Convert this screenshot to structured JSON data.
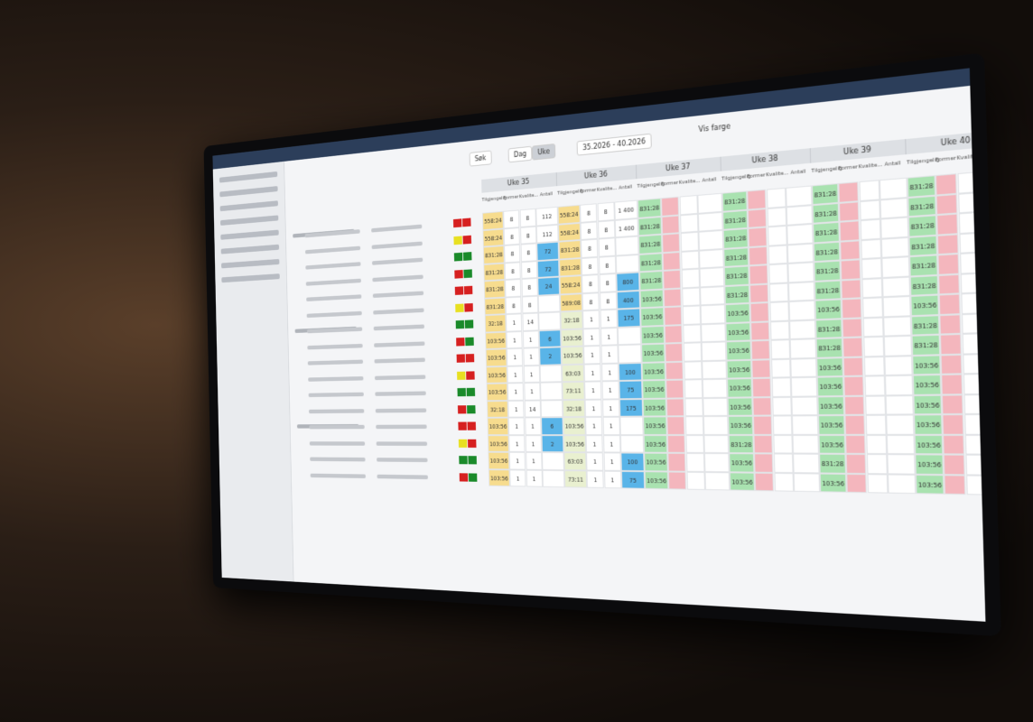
{
  "header": {
    "date_range": "35.2026 - 40.2026",
    "view_day": "Dag",
    "view_week": "Uke",
    "search": "Søk",
    "show_color": "Vis farge"
  },
  "columns": [
    "Tilgjengelig",
    "Former",
    "Kvalite...",
    "Antall"
  ],
  "weeks": [
    {
      "name": "Uke 35"
    },
    {
      "name": "Uke 36"
    },
    {
      "name": "Uke 37"
    },
    {
      "name": "Uke 38"
    },
    {
      "name": "Uke 39"
    },
    {
      "name": "Uke 40"
    }
  ],
  "rows": [
    {
      "cells": [
        [
          "558:24",
          "8",
          "8",
          "112"
        ],
        [
          "558:24",
          "8",
          "8",
          "1 400"
        ],
        [
          "831:28"
        ],
        [
          "831:28"
        ],
        [
          "831:28"
        ],
        [
          "831:28"
        ]
      ]
    },
    {
      "cells": [
        [
          "558:24",
          "8",
          "8",
          "112"
        ],
        [
          "558:24",
          "8",
          "8",
          "1 400"
        ],
        [
          "831:28"
        ],
        [
          "831:28"
        ],
        [
          "831:28"
        ],
        [
          "831:28"
        ]
      ]
    },
    {
      "cells": [
        [
          "831:28",
          "8",
          "8",
          "72"
        ],
        [
          "831:28",
          "8",
          "8",
          null
        ],
        [
          "831:28"
        ],
        [
          "831:28"
        ],
        [
          "831:28"
        ],
        [
          "831:28"
        ]
      ]
    },
    {
      "cells": [
        [
          "831:28",
          "8",
          "8",
          "72"
        ],
        [
          "831:28",
          "8",
          "8",
          null
        ],
        [
          "831:28"
        ],
        [
          "831:28"
        ],
        [
          "831:28"
        ],
        [
          "831:28"
        ]
      ]
    },
    {
      "cells": [
        [
          "831:28",
          "8",
          "8",
          "24"
        ],
        [
          "558:24",
          "8",
          "8",
          "800"
        ],
        [
          "831:28"
        ],
        [
          "831:28"
        ],
        [
          "831:28"
        ],
        [
          "831:28"
        ]
      ]
    },
    {
      "cells": [
        [
          "831:28",
          "8",
          "8",
          null
        ],
        [
          "589:08",
          "8",
          "8",
          "400"
        ],
        [
          "103:56"
        ],
        [
          "831:28"
        ],
        [
          "831:28"
        ],
        [
          "831:28"
        ]
      ]
    },
    {
      "cells": [
        [
          "32:18",
          "1",
          "14",
          null
        ],
        [
          "32:18",
          "1",
          "1",
          "175"
        ],
        [
          "103:56"
        ],
        [
          "103:56"
        ],
        [
          "103:56"
        ],
        [
          "103:56"
        ]
      ]
    },
    {
      "cells": [
        [
          "103:56",
          "1",
          "1",
          "6"
        ],
        [
          "103:56",
          "1",
          "1",
          null
        ],
        [
          "103:56"
        ],
        [
          "103:56"
        ],
        [
          "831:28"
        ],
        [
          "831:28"
        ]
      ]
    },
    {
      "cells": [
        [
          "103:56",
          "1",
          "1",
          "2"
        ],
        [
          "103:56",
          "1",
          "1",
          null
        ],
        [
          "103:56"
        ],
        [
          "103:56"
        ],
        [
          "831:28"
        ],
        [
          "831:28"
        ]
      ]
    },
    {
      "cells": [
        [
          "103:56",
          "1",
          "1",
          null
        ],
        [
          "63:03",
          "1",
          "1",
          "100"
        ],
        [
          "103:56"
        ],
        [
          "103:56"
        ],
        [
          "103:56"
        ],
        [
          "103:56"
        ]
      ]
    },
    {
      "cells": [
        [
          "103:56",
          "1",
          "1",
          null
        ],
        [
          "73:11",
          "1",
          "1",
          "75"
        ],
        [
          "103:56"
        ],
        [
          "103:56"
        ],
        [
          "103:56"
        ],
        [
          "103:56"
        ]
      ]
    },
    {
      "cells": [
        [
          "32:18",
          "1",
          "14",
          null
        ],
        [
          "32:18",
          "1",
          "1",
          "175"
        ],
        [
          "103:56"
        ],
        [
          "103:56"
        ],
        [
          "103:56"
        ],
        [
          "103:56"
        ]
      ]
    },
    {
      "cells": [
        [
          "103:56",
          "1",
          "1",
          "6"
        ],
        [
          "103:56",
          "1",
          "1",
          null
        ],
        [
          "103:56"
        ],
        [
          "103:56"
        ],
        [
          "103:56"
        ],
        [
          "103:56"
        ]
      ]
    },
    {
      "cells": [
        [
          "103:56",
          "1",
          "1",
          "2"
        ],
        [
          "103:56",
          "1",
          "1",
          null
        ],
        [
          "103:56"
        ],
        [
          "831:28"
        ],
        [
          "103:56"
        ],
        [
          "103:56"
        ]
      ]
    },
    {
      "cells": [
        [
          "103:56",
          "1",
          "1",
          null
        ],
        [
          "63:03",
          "1",
          "1",
          "100"
        ],
        [
          "103:56"
        ],
        [
          "103:56"
        ],
        [
          "831:28"
        ],
        [
          "103:56"
        ]
      ]
    },
    {
      "cells": [
        [
          "103:56",
          "1",
          "1",
          null
        ],
        [
          "73:11",
          "1",
          "1",
          "75"
        ],
        [
          "103:56"
        ],
        [
          "103:56"
        ],
        [
          "103:56"
        ],
        [
          "103:56"
        ]
      ]
    }
  ]
}
